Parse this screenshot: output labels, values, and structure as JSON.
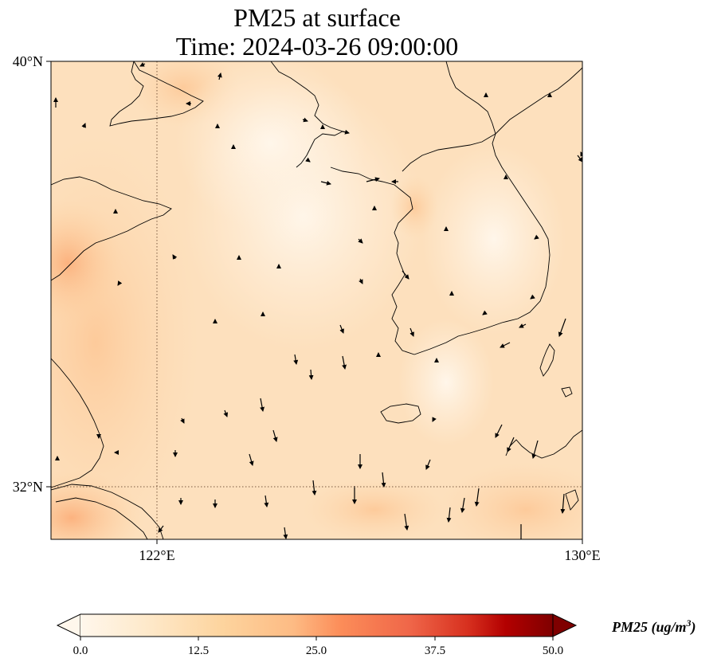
{
  "title": {
    "line1": "PM25 at surface",
    "line2": "Time: 2024-03-26 09:00:00"
  },
  "map": {
    "lat_labels": [
      "40°N",
      "32°N"
    ],
    "lon_labels": [
      "122°E",
      "130°E"
    ],
    "extent": {
      "lon_min": 120,
      "lon_max": 130,
      "lat_min": 31,
      "lat_max": 40
    },
    "gridlines": {
      "lon": [
        122
      ],
      "lat": [
        32
      ],
      "style": "dotted"
    }
  },
  "colorbar": {
    "ticks": [
      "0.0",
      "12.5",
      "25.0",
      "37.5",
      "50.0"
    ],
    "min": 0,
    "max": 50,
    "label_main": "PM25 (ug/m",
    "label_sup": "3",
    "label_close": ")",
    "colormap": "OrRd",
    "extend": "both"
  },
  "colors": {
    "low": "#fff7ec",
    "mid": "#fdd49e",
    "high": "#7f0000",
    "coast": "#000000"
  }
}
